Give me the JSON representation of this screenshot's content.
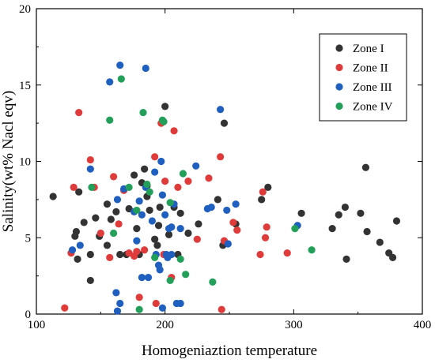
{
  "chart_data": {
    "type": "scatter",
    "title": "",
    "xlabel": "Homogeniaztion temperature",
    "ylabel": "Salinity(wt% Nacl eqv)",
    "xlim": [
      100,
      400
    ],
    "ylim": [
      0,
      20
    ],
    "xticks": [
      100,
      200,
      300,
      400
    ],
    "yticks": [
      0,
      5,
      10,
      15,
      20
    ],
    "grid": false,
    "legend_position": "top-right",
    "series": [
      {
        "name": "Zone  I",
        "color": "#333333",
        "points": [
          [
            113,
            7.7
          ],
          [
            130,
            5.1
          ],
          [
            131,
            5.4
          ],
          [
            133,
            8.0
          ],
          [
            132,
            3.6
          ],
          [
            137,
            6.0
          ],
          [
            142,
            2.2
          ],
          [
            142,
            3.9
          ],
          [
            146,
            6.3
          ],
          [
            149,
            5.1
          ],
          [
            155,
            4.5
          ],
          [
            155,
            7.2
          ],
          [
            158,
            6.2
          ],
          [
            162,
            6.7
          ],
          [
            165,
            3.9
          ],
          [
            170,
            3.9
          ],
          [
            172,
            6.9
          ],
          [
            176,
            9.1
          ],
          [
            178,
            5.6
          ],
          [
            180,
            3.9
          ],
          [
            182,
            8.6
          ],
          [
            184,
            9.5
          ],
          [
            186,
            7.7
          ],
          [
            186,
            8.4
          ],
          [
            188,
            6.8
          ],
          [
            192,
            4.9
          ],
          [
            194,
            4.5
          ],
          [
            195,
            5.8
          ],
          [
            196,
            7.0
          ],
          [
            200,
            13.6
          ],
          [
            203,
            5.2
          ],
          [
            207,
            7.0
          ],
          [
            210,
            3.9
          ],
          [
            212,
            6.6
          ],
          [
            218,
            5.3
          ],
          [
            226,
            5.9
          ],
          [
            241,
            7.5
          ],
          [
            245,
            4.5
          ],
          [
            246,
            12.5
          ],
          [
            255,
            5.9
          ],
          [
            275,
            7.5
          ],
          [
            280,
            8.3
          ],
          [
            306,
            6.6
          ],
          [
            330,
            5.6
          ],
          [
            335,
            6.5
          ],
          [
            340,
            7.0
          ],
          [
            341,
            3.6
          ],
          [
            352,
            6.6
          ],
          [
            356,
            9.6
          ],
          [
            357,
            5.4
          ],
          [
            367,
            4.7
          ],
          [
            374,
            4.0
          ],
          [
            377,
            3.7
          ],
          [
            380,
            6.1
          ]
        ]
      },
      {
        "name": "Zone II",
        "color": "#e03b3b",
        "points": [
          [
            122,
            0.4
          ],
          [
            127,
            4.0
          ],
          [
            129,
            8.3
          ],
          [
            133,
            13.2
          ],
          [
            142,
            10.1
          ],
          [
            145,
            8.3
          ],
          [
            150,
            5.3
          ],
          [
            157,
            3.7
          ],
          [
            160,
            9.0
          ],
          [
            164,
            5.9
          ],
          [
            168,
            8.1
          ],
          [
            172,
            4.0
          ],
          [
            176,
            3.8
          ],
          [
            178,
            4.1
          ],
          [
            180,
            1.1
          ],
          [
            184,
            4.2
          ],
          [
            192,
            10.3
          ],
          [
            193,
            0.7
          ],
          [
            197,
            12.5
          ],
          [
            199,
            3.9
          ],
          [
            200,
            8.7
          ],
          [
            205,
            2.4
          ],
          [
            207,
            12.0
          ],
          [
            210,
            8.3
          ],
          [
            218,
            8.7
          ],
          [
            225,
            4.9
          ],
          [
            234,
            8.9
          ],
          [
            243,
            10.3
          ],
          [
            244,
            0.3
          ],
          [
            246,
            4.8
          ],
          [
            253,
            6.0
          ],
          [
            256,
            5.5
          ],
          [
            274,
            3.9
          ],
          [
            276,
            8.0
          ],
          [
            278,
            5.0
          ],
          [
            279,
            5.7
          ],
          [
            295,
            4.0
          ]
        ]
      },
      {
        "name": "Zone III",
        "color": "#1f5fbf",
        "points": [
          [
            128,
            4.2
          ],
          [
            134,
            4.5
          ],
          [
            142,
            9.5
          ],
          [
            157,
            15.2
          ],
          [
            162,
            1.4
          ],
          [
            163,
            0.2
          ],
          [
            163,
            7.5
          ],
          [
            165,
            16.3
          ],
          [
            165,
            0.7
          ],
          [
            168,
            8.2
          ],
          [
            176,
            6.7
          ],
          [
            178,
            4.8
          ],
          [
            180,
            7.4
          ],
          [
            182,
            6.5
          ],
          [
            182,
            2.4
          ],
          [
            185,
            16.1
          ],
          [
            185,
            8.3
          ],
          [
            187,
            2.4
          ],
          [
            190,
            6.1
          ],
          [
            192,
            9.3
          ],
          [
            193,
            3.9
          ],
          [
            195,
            3.2
          ],
          [
            196,
            2.9
          ],
          [
            197,
            10.0
          ],
          [
            198,
            7.8
          ],
          [
            198,
            0.4
          ],
          [
            200,
            6.5
          ],
          [
            201,
            3.9
          ],
          [
            202,
            3.7
          ],
          [
            203,
            5.6
          ],
          [
            205,
            5.7
          ],
          [
            205,
            3.9
          ],
          [
            207,
            7.2
          ],
          [
            209,
            0.7
          ],
          [
            212,
            5.6
          ],
          [
            212,
            0.7
          ],
          [
            224,
            9.7
          ],
          [
            233,
            6.9
          ],
          [
            236,
            7.0
          ],
          [
            243,
            13.4
          ],
          [
            248,
            6.8
          ],
          [
            249,
            4.6
          ],
          [
            255,
            7.2
          ],
          [
            303,
            5.8
          ]
        ]
      },
      {
        "name": "Zone IV",
        "color": "#22a05a",
        "points": [
          [
            143,
            8.3
          ],
          [
            157,
            12.7
          ],
          [
            160,
            5.3
          ],
          [
            166,
            15.4
          ],
          [
            172,
            8.3
          ],
          [
            178,
            6.8
          ],
          [
            180,
            0.3
          ],
          [
            183,
            13.2
          ],
          [
            186,
            8.5
          ],
          [
            188,
            8.0
          ],
          [
            192,
            3.7
          ],
          [
            198,
            12.7
          ],
          [
            199,
            12.6
          ],
          [
            204,
            2.2
          ],
          [
            204,
            7.3
          ],
          [
            212,
            3.6
          ],
          [
            214,
            9.2
          ],
          [
            216,
            2.6
          ],
          [
            237,
            2.1
          ],
          [
            301,
            5.6
          ],
          [
            314,
            4.2
          ]
        ]
      }
    ]
  }
}
